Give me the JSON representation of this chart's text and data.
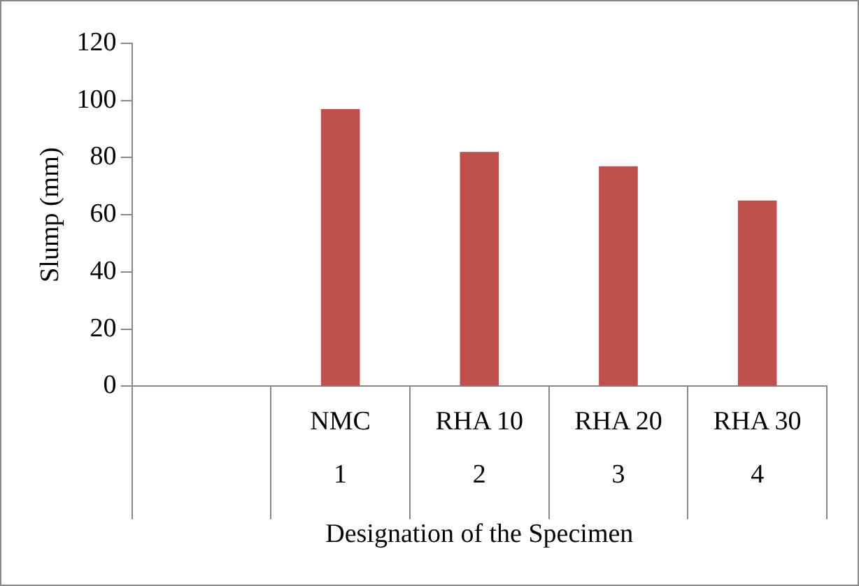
{
  "chart_data": {
    "type": "bar",
    "xlabel": "Designation of the Specimen",
    "ylabel": "Slump (mm)",
    "categories": [
      null,
      "NMC\n1",
      "RHA 10\n2",
      "RHA 20\n3",
      "RHA 30\n4"
    ],
    "values": [
      null,
      97,
      82,
      77,
      65
    ],
    "color": "#c0504d",
    "ylim": [
      0,
      120
    ],
    "yticks": [
      0,
      20,
      40,
      60,
      80,
      100,
      120
    ],
    "grid": false,
    "legend": false
  }
}
